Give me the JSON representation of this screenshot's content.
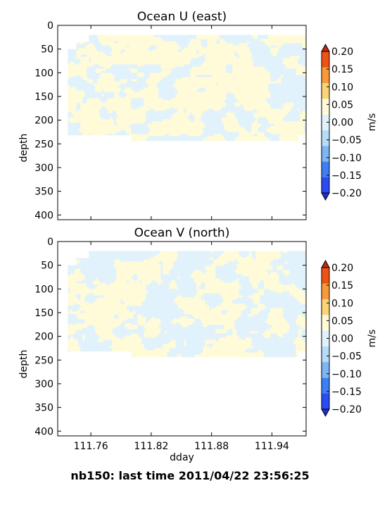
{
  "footer": "nb150: last time 2011/04/22 23:56:25",
  "colormap": {
    "levels": [
      -0.2,
      -0.15,
      -0.1,
      -0.05,
      0.0,
      0.05,
      0.1,
      0.15,
      0.2
    ],
    "colors": [
      "#2b4cf5",
      "#3f7ff5",
      "#7db6f2",
      "#b7dcf8",
      "#e1f2fc",
      "#fffbd8",
      "#fbd47a",
      "#f79a3a",
      "#ee5316"
    ],
    "under_color": "#1f2ed0",
    "over_color": "#c22a0e",
    "tick_labels": [
      "−0.20",
      "−0.15",
      "−0.10",
      "−0.05",
      "0.00",
      "0.05",
      "0.10",
      "0.15",
      "0.20"
    ],
    "unit_label": "m/s"
  },
  "chart_data": [
    {
      "type": "heatmap",
      "title": "Ocean U (east)",
      "xlabel": "",
      "ylabel": "depth",
      "xlim": [
        111.727,
        111.974
      ],
      "ylim": [
        410,
        0
      ],
      "xticks": [
        111.76,
        111.82,
        111.88,
        111.94
      ],
      "xtick_labels": [],
      "yticks": [
        0,
        50,
        100,
        150,
        200,
        250,
        300,
        350,
        400
      ],
      "ytick_labels": [
        "0",
        "50",
        "100",
        "150",
        "200",
        "250",
        "300",
        "350",
        "400"
      ],
      "data_region": {
        "x_range": [
          111.737,
          111.974
        ],
        "depth_range": [
          20,
          240
        ],
        "bottom_edge": [
          {
            "x_from": 111.737,
            "x_to": 111.8,
            "depth": 232
          },
          {
            "x_from": 111.8,
            "x_to": 111.966,
            "depth": 244
          },
          {
            "x_from": 111.966,
            "x_to": 111.974,
            "depth": 232
          }
        ]
      },
      "value_range": [
        -0.05,
        0.05
      ],
      "levels_present": [
        -0.05,
        0.0,
        0.05
      ],
      "colorbar": {
        "label": "m/s",
        "extend": "both"
      }
    },
    {
      "type": "heatmap",
      "title": "Ocean V (north)",
      "xlabel": "dday",
      "ylabel": "depth",
      "xlim": [
        111.727,
        111.974
      ],
      "ylim": [
        410,
        0
      ],
      "xticks": [
        111.76,
        111.82,
        111.88,
        111.94
      ],
      "xtick_labels": [
        "111.76",
        "111.82",
        "111.88",
        "111.94"
      ],
      "yticks": [
        0,
        50,
        100,
        150,
        200,
        250,
        300,
        350,
        400
      ],
      "ytick_labels": [
        "0",
        "50",
        "100",
        "150",
        "200",
        "250",
        "300",
        "350",
        "400"
      ],
      "data_region": {
        "x_range": [
          111.737,
          111.974
        ],
        "depth_range": [
          20,
          240
        ],
        "bottom_edge": [
          {
            "x_from": 111.737,
            "x_to": 111.8,
            "depth": 232
          },
          {
            "x_from": 111.8,
            "x_to": 111.966,
            "depth": 244
          },
          {
            "x_from": 111.966,
            "x_to": 111.974,
            "depth": 232
          }
        ]
      },
      "value_range": [
        -0.05,
        0.05
      ],
      "levels_present": [
        -0.05,
        0.0,
        0.05
      ],
      "colorbar": {
        "label": "m/s",
        "extend": "both"
      }
    }
  ]
}
